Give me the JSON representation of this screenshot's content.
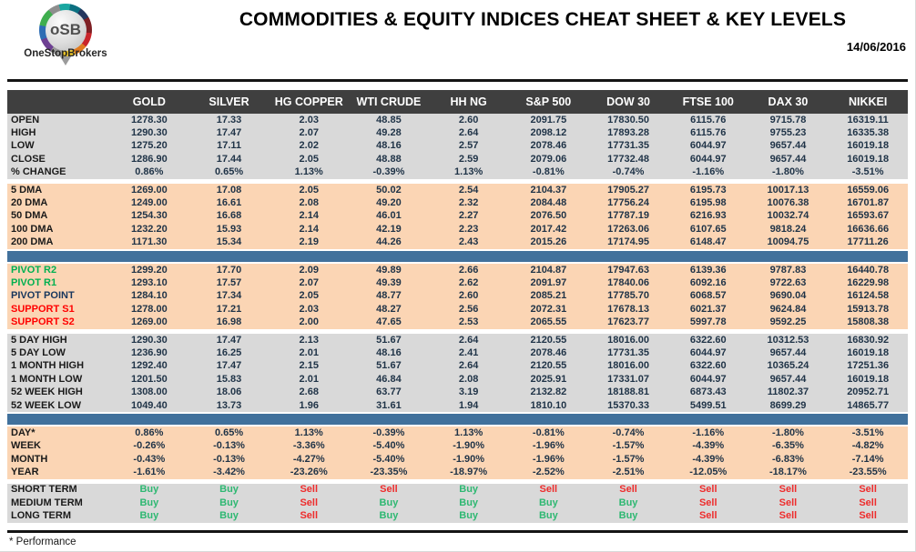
{
  "header": {
    "logo_text": "oSB",
    "logo_subtext": "OneStopBrokers",
    "title": "COMMODITIES & EQUITY INDICES CHEAT SHEET & KEY LEVELS",
    "date": "14/06/2016"
  },
  "colors": {
    "charcoal": "#3f3f3f",
    "grayrow": "#d9d9d9",
    "peachrow": "#fbd5b4",
    "blue": "#41719c",
    "navy": "#1f3347",
    "label": "#1a1a1a",
    "green": "#00b050",
    "pivotnavy": "#17365d",
    "red": "#ff0000",
    "buygreen": "#2eb872",
    "sellred": "#ee2c2c"
  },
  "table": {
    "columns": [
      "GOLD",
      "SILVER",
      "HG COPPER",
      "WTI CRUDE",
      "HH NG",
      "S&P 500",
      "DOW 30",
      "FTSE 100",
      "DAX 30",
      "NIKKEI"
    ],
    "sections": [
      {
        "type": "rows",
        "theme": "gray",
        "rows": [
          {
            "label": "OPEN",
            "values": [
              "1278.30",
              "17.33",
              "2.03",
              "48.85",
              "2.60",
              "2091.75",
              "17830.50",
              "6115.76",
              "9715.78",
              "16319.11"
            ]
          },
          {
            "label": "HIGH",
            "values": [
              "1290.30",
              "17.47",
              "2.07",
              "49.28",
              "2.64",
              "2098.12",
              "17893.28",
              "6115.76",
              "9755.23",
              "16335.38"
            ]
          },
          {
            "label": "LOW",
            "values": [
              "1275.20",
              "17.11",
              "2.02",
              "48.16",
              "2.57",
              "2078.46",
              "17731.35",
              "6044.97",
              "9657.44",
              "16019.18"
            ]
          },
          {
            "label": "CLOSE",
            "values": [
              "1286.90",
              "17.44",
              "2.05",
              "48.88",
              "2.59",
              "2079.06",
              "17732.48",
              "6044.97",
              "9657.44",
              "16019.18"
            ]
          },
          {
            "label": "% CHANGE",
            "values": [
              "0.86%",
              "0.65%",
              "1.13%",
              "-0.39%",
              "1.13%",
              "-0.81%",
              "-0.74%",
              "-1.16%",
              "-1.80%",
              "-3.51%"
            ]
          }
        ]
      },
      {
        "type": "gap"
      },
      {
        "type": "rows",
        "theme": "peach",
        "rows": [
          {
            "label": "5 DMA",
            "values": [
              "1269.00",
              "17.08",
              "2.05",
              "50.02",
              "2.54",
              "2104.37",
              "17905.27",
              "6195.73",
              "10017.13",
              "16559.06"
            ]
          },
          {
            "label": "20 DMA",
            "values": [
              "1249.00",
              "16.61",
              "2.08",
              "49.20",
              "2.32",
              "2084.48",
              "17756.24",
              "6195.98",
              "10076.38",
              "16701.87"
            ]
          },
          {
            "label": "50 DMA",
            "values": [
              "1254.30",
              "16.68",
              "2.14",
              "46.01",
              "2.27",
              "2076.50",
              "17787.19",
              "6216.93",
              "10032.74",
              "16593.67"
            ]
          },
          {
            "label": "100 DMA",
            "values": [
              "1232.20",
              "15.93",
              "2.14",
              "42.19",
              "2.23",
              "2017.42",
              "17263.06",
              "6107.65",
              "9818.24",
              "16636.66"
            ]
          },
          {
            "label": "200 DMA",
            "values": [
              "1171.30",
              "15.34",
              "2.19",
              "44.26",
              "2.43",
              "2015.26",
              "17174.95",
              "6148.47",
              "10094.75",
              "17711.26"
            ]
          }
        ]
      },
      {
        "type": "divider"
      },
      {
        "type": "rows",
        "theme": "peach",
        "rows": [
          {
            "label": "PIVOT R2",
            "label_class": "green",
            "values": [
              "1299.20",
              "17.70",
              "2.09",
              "49.89",
              "2.66",
              "2104.87",
              "17947.63",
              "6139.36",
              "9787.83",
              "16440.78"
            ]
          },
          {
            "label": "PIVOT R1",
            "label_class": "green",
            "values": [
              "1293.10",
              "17.57",
              "2.07",
              "49.39",
              "2.62",
              "2091.97",
              "17840.06",
              "6092.16",
              "9722.63",
              "16229.98"
            ]
          },
          {
            "label": "PIVOT POINT",
            "label_class": "navylbl",
            "values": [
              "1284.10",
              "17.34",
              "2.05",
              "48.77",
              "2.60",
              "2085.21",
              "17785.70",
              "6068.57",
              "9690.04",
              "16124.58"
            ]
          },
          {
            "label": "SUPPORT S1",
            "label_class": "red",
            "values": [
              "1278.00",
              "17.21",
              "2.03",
              "48.27",
              "2.56",
              "2072.31",
              "17678.13",
              "6021.37",
              "9624.84",
              "15913.78"
            ]
          },
          {
            "label": "SUPPORT S2",
            "label_class": "red",
            "values": [
              "1269.00",
              "16.98",
              "2.00",
              "47.65",
              "2.53",
              "2065.55",
              "17623.77",
              "5997.78",
              "9592.25",
              "15808.38"
            ]
          }
        ]
      },
      {
        "type": "gap"
      },
      {
        "type": "rows",
        "theme": "gray",
        "rows": [
          {
            "label": "5 DAY HIGH",
            "values": [
              "1290.30",
              "17.47",
              "2.13",
              "51.67",
              "2.64",
              "2120.55",
              "18016.00",
              "6322.60",
              "10312.53",
              "16830.92"
            ]
          },
          {
            "label": "5 DAY LOW",
            "values": [
              "1236.90",
              "16.25",
              "2.01",
              "48.16",
              "2.41",
              "2078.46",
              "17731.35",
              "6044.97",
              "9657.44",
              "16019.18"
            ]
          },
          {
            "label": "1 MONTH HIGH",
            "values": [
              "1292.40",
              "17.47",
              "2.15",
              "51.67",
              "2.64",
              "2120.55",
              "18016.00",
              "6322.60",
              "10365.24",
              "17251.36"
            ]
          },
          {
            "label": "1 MONTH LOW",
            "values": [
              "1201.50",
              "15.83",
              "2.01",
              "46.84",
              "2.08",
              "2025.91",
              "17331.07",
              "6044.97",
              "9657.44",
              "16019.18"
            ]
          },
          {
            "label": "52 WEEK HIGH",
            "values": [
              "1308.00",
              "18.06",
              "2.68",
              "63.77",
              "3.19",
              "2132.82",
              "18188.81",
              "6873.43",
              "11802.37",
              "20952.71"
            ]
          },
          {
            "label": "52 WEEK LOW",
            "values": [
              "1049.40",
              "13.73",
              "1.96",
              "31.61",
              "1.94",
              "1810.10",
              "15370.33",
              "5499.51",
              "8699.29",
              "14865.77"
            ]
          }
        ]
      },
      {
        "type": "divider"
      },
      {
        "type": "rows",
        "theme": "peach",
        "rows": [
          {
            "label": "DAY*",
            "values": [
              "0.86%",
              "0.65%",
              "1.13%",
              "-0.39%",
              "1.13%",
              "-0.81%",
              "-0.74%",
              "-1.16%",
              "-1.80%",
              "-3.51%"
            ]
          },
          {
            "label": "WEEK",
            "values": [
              "-0.26%",
              "-0.13%",
              "-3.36%",
              "-5.40%",
              "-1.90%",
              "-1.96%",
              "-1.57%",
              "-4.39%",
              "-6.35%",
              "-4.82%"
            ]
          },
          {
            "label": "MONTH",
            "values": [
              "-0.43%",
              "-0.13%",
              "-4.27%",
              "-5.40%",
              "-1.90%",
              "-1.96%",
              "-1.57%",
              "-4.39%",
              "-6.83%",
              "-7.14%"
            ]
          },
          {
            "label": "YEAR",
            "values": [
              "-1.61%",
              "-3.42%",
              "-23.26%",
              "-23.35%",
              "-18.97%",
              "-2.52%",
              "-2.51%",
              "-12.05%",
              "-18.17%",
              "-23.55%"
            ]
          }
        ]
      },
      {
        "type": "gap"
      },
      {
        "type": "rows",
        "theme": "gray",
        "rows": [
          {
            "label": "SHORT TERM",
            "signals": true,
            "values": [
              "Buy",
              "Buy",
              "Sell",
              "Sell",
              "Buy",
              "Sell",
              "Sell",
              "Sell",
              "Sell",
              "Sell"
            ]
          },
          {
            "label": "MEDIUM TERM",
            "signals": true,
            "values": [
              "Buy",
              "Buy",
              "Sell",
              "Buy",
              "Buy",
              "Buy",
              "Buy",
              "Sell",
              "Sell",
              "Sell"
            ]
          },
          {
            "label": "LONG TERM",
            "signals": true,
            "values": [
              "Buy",
              "Buy",
              "Sell",
              "Buy",
              "Buy",
              "Buy",
              "Buy",
              "Sell",
              "Sell",
              "Sell"
            ]
          }
        ]
      }
    ]
  },
  "footer": {
    "note": "* Performance"
  }
}
